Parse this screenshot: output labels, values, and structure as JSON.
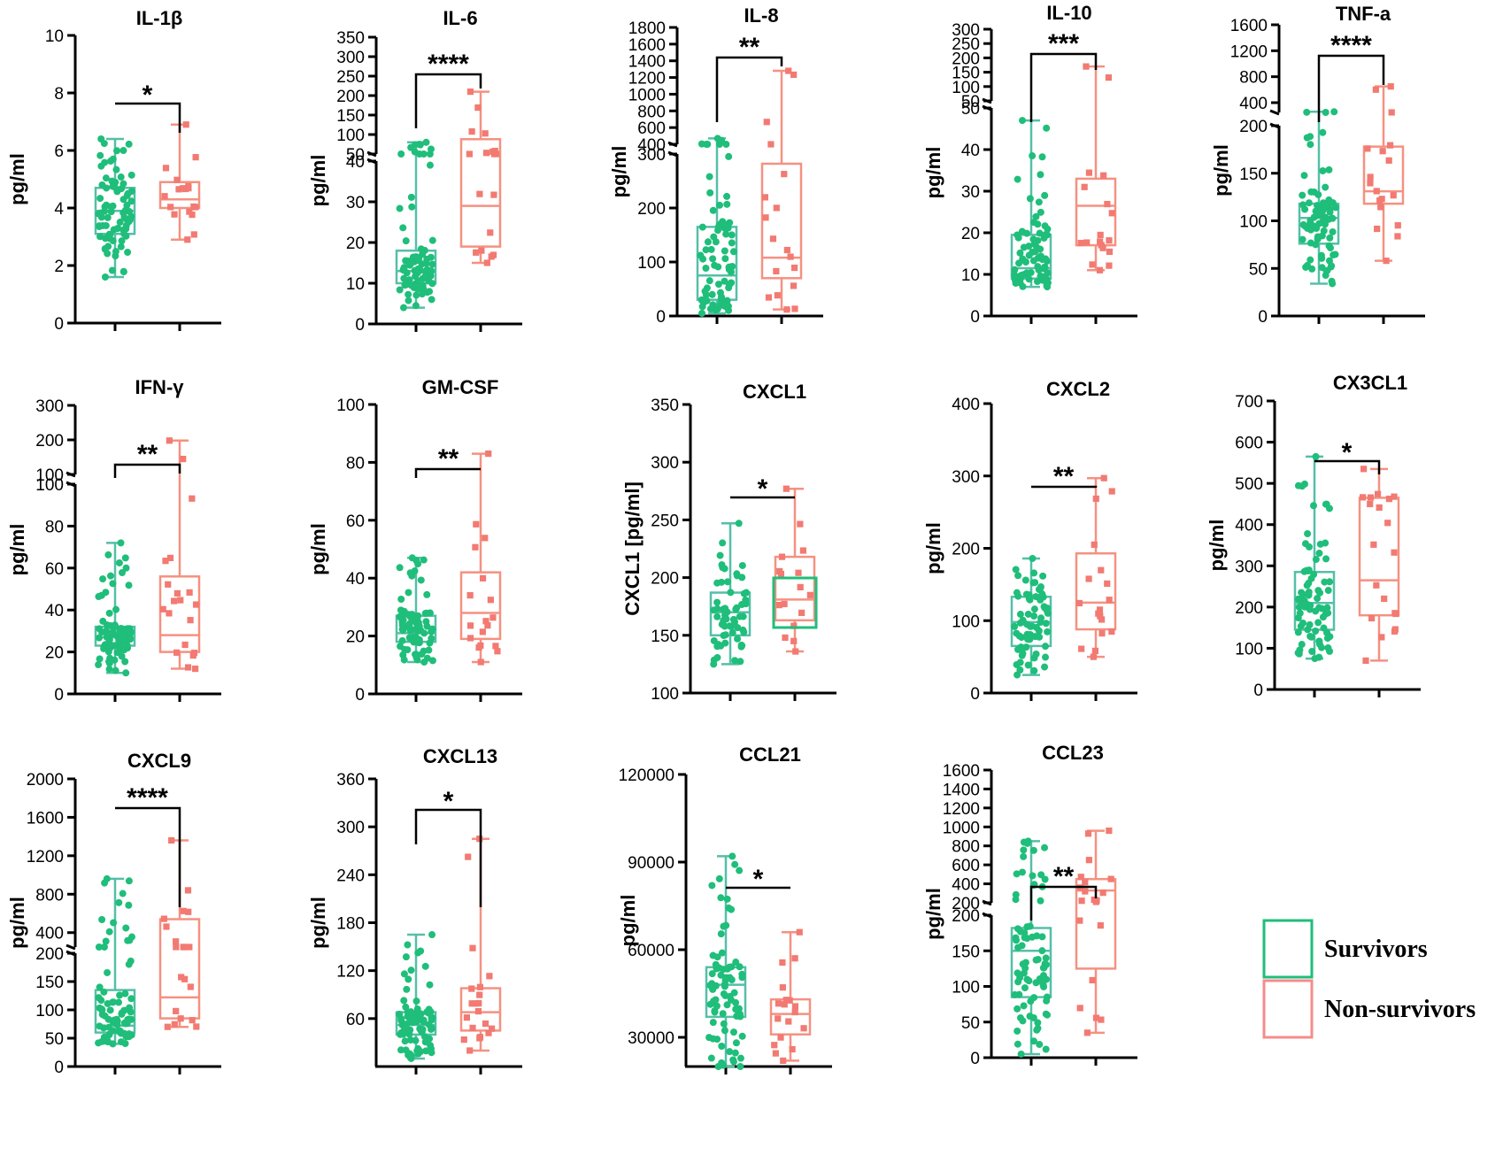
{
  "colors": {
    "survivors": "#1fbe7a",
    "nonsurvivors": "#f27a72",
    "survivors_box": "#55bfa8",
    "nonsurvivors_box": "#f59181",
    "axis": "#000000"
  },
  "legend": {
    "items": [
      {
        "label": "Survivors",
        "color": "#1fbe7a"
      },
      {
        "label": "Non-survivors",
        "color": "#f58c8c"
      }
    ]
  },
  "chart_data": [
    {
      "type": "box",
      "title": "IL-1β",
      "ylabel": "pg/ml",
      "significance": "*",
      "segments": [
        {
          "range": [
            0,
            10
          ],
          "ticks": [
            0,
            2,
            4,
            6,
            8,
            10
          ]
        }
      ],
      "groups": [
        {
          "name": "Survivors",
          "min": 1.6,
          "q1": 3.1,
          "median": 3.9,
          "q3": 4.7,
          "max": 6.4,
          "n": 80
        },
        {
          "name": "Non-survivors",
          "min": 2.9,
          "q1": 4.0,
          "median": 4.3,
          "q3": 4.9,
          "max": 6.9,
          "n": 18
        }
      ]
    },
    {
      "type": "box",
      "title": "IL-6",
      "ylabel": "pg/ml",
      "significance": "****",
      "segments": [
        {
          "range": [
            0,
            40
          ],
          "ticks": [
            0,
            10,
            20,
            30,
            40
          ]
        },
        {
          "range": [
            50,
            350
          ],
          "ticks": [
            50,
            100,
            150,
            200,
            250,
            300,
            350
          ]
        }
      ],
      "groups": [
        {
          "name": "Survivors",
          "min": 4,
          "q1": 10,
          "median": 13,
          "q3": 18,
          "max": 80,
          "n": 80
        },
        {
          "name": "Non-survivors",
          "min": 15,
          "q1": 19,
          "median": 29,
          "q3": 88,
          "max": 210,
          "n": 18
        }
      ]
    },
    {
      "type": "box",
      "title": "IL-8",
      "ylabel": "pg/ml",
      "significance": "**",
      "segments": [
        {
          "range": [
            0,
            300
          ],
          "ticks": [
            0,
            100,
            200,
            300
          ]
        },
        {
          "range": [
            400,
            1800
          ],
          "ticks": [
            400,
            600,
            800,
            1000,
            1200,
            1400,
            1600,
            1800
          ]
        }
      ],
      "groups": [
        {
          "name": "Survivors",
          "min": 5,
          "q1": 30,
          "median": 75,
          "q3": 165,
          "max": 470,
          "n": 80
        },
        {
          "name": "Non-survivors",
          "min": 12,
          "q1": 70,
          "median": 108,
          "q3": 282,
          "max": 1280,
          "n": 18
        }
      ]
    },
    {
      "type": "box",
      "title": "IL-10",
      "ylabel": "pg/ml",
      "significance": "***",
      "segments": [
        {
          "range": [
            0,
            50
          ],
          "ticks": [
            0,
            10,
            20,
            30,
            40,
            50
          ]
        },
        {
          "range": [
            50,
            300
          ],
          "ticks": [
            50,
            100,
            150,
            200,
            250,
            300
          ]
        }
      ],
      "groups": [
        {
          "name": "Survivors",
          "min": 7,
          "q1": 9,
          "median": 11.5,
          "q3": 19.5,
          "max": 47,
          "n": 80
        },
        {
          "name": "Non-survivors",
          "min": 11,
          "q1": 17,
          "median": 26.5,
          "q3": 33,
          "max": 170,
          "n": 18
        }
      ]
    },
    {
      "type": "box",
      "title": "TNF-a",
      "ylabel": "pg/ml",
      "significance": "****",
      "segments": [
        {
          "range": [
            0,
            200
          ],
          "ticks": [
            0,
            50,
            100,
            150,
            200
          ]
        },
        {
          "range": [
            250,
            1600
          ],
          "ticks": [
            400,
            800,
            1200,
            1600
          ]
        }
      ],
      "groups": [
        {
          "name": "Survivors",
          "min": 34,
          "q1": 76,
          "median": 103,
          "q3": 118,
          "max": 260,
          "n": 80
        },
        {
          "name": "Non-survivors",
          "min": 58,
          "q1": 118,
          "median": 131,
          "q3": 178,
          "max": 650,
          "n": 18
        }
      ]
    },
    {
      "type": "box",
      "title": "IFN-γ",
      "ylabel": "pg/ml",
      "significance": "**",
      "segments": [
        {
          "range": [
            0,
            100
          ],
          "ticks": [
            0,
            20,
            40,
            60,
            80,
            100
          ]
        },
        {
          "range": [
            100,
            300
          ],
          "ticks": [
            100,
            200,
            300
          ]
        }
      ],
      "groups": [
        {
          "name": "Survivors",
          "min": 10,
          "q1": 23,
          "median": 27,
          "q3": 32,
          "max": 72,
          "n": 80
        },
        {
          "name": "Non-survivors",
          "min": 12,
          "q1": 20,
          "median": 28,
          "q3": 56,
          "max": 198,
          "n": 20
        }
      ]
    },
    {
      "type": "box",
      "title": "GM-CSF",
      "ylabel": "pg/ml",
      "significance": "**",
      "segments": [
        {
          "range": [
            0,
            100
          ],
          "ticks": [
            0,
            20,
            40,
            60,
            80,
            100
          ]
        }
      ],
      "groups": [
        {
          "name": "Survivors",
          "min": 11,
          "q1": 18,
          "median": 21,
          "q3": 27,
          "max": 47,
          "n": 80
        },
        {
          "name": "Non-survivors",
          "min": 11,
          "q1": 19,
          "median": 28,
          "q3": 42,
          "max": 83,
          "n": 18
        }
      ]
    },
    {
      "type": "box",
      "title": "CXCL1",
      "ylabel": "CXCL1 [pg/ml]",
      "significance": "*",
      "segments": [
        {
          "range": [
            100,
            350
          ],
          "ticks": [
            100,
            150,
            200,
            250,
            300,
            350
          ]
        }
      ],
      "groups": [
        {
          "name": "Survivors",
          "min": 125,
          "q1": 150,
          "median": 170,
          "q3": 187,
          "max": 247,
          "n": 60
        },
        {
          "name": "Non-survivors",
          "min": 136,
          "q1": 163,
          "median": 181,
          "q3": 218,
          "max": 277,
          "n": 16
        }
      ]
    },
    {
      "type": "box",
      "title": "CXCL2",
      "ylabel": "pg/ml",
      "significance": "**",
      "segments": [
        {
          "range": [
            0,
            400
          ],
          "ticks": [
            0,
            100,
            200,
            300,
            400
          ]
        }
      ],
      "groups": [
        {
          "name": "Survivors",
          "min": 25,
          "q1": 65,
          "median": 98,
          "q3": 133,
          "max": 186,
          "n": 70
        },
        {
          "name": "Non-survivors",
          "min": 50,
          "q1": 88,
          "median": 125,
          "q3": 193,
          "max": 297,
          "n": 18
        }
      ]
    },
    {
      "type": "box",
      "title": "CX3CL1",
      "ylabel": "pg/ml",
      "significance": "*",
      "segments": [
        {
          "range": [
            0,
            700
          ],
          "ticks": [
            0,
            100,
            200,
            300,
            400,
            500,
            600,
            700
          ]
        }
      ],
      "groups": [
        {
          "name": "Survivors",
          "min": 75,
          "q1": 145,
          "median": 210,
          "q3": 285,
          "max": 565,
          "n": 80
        },
        {
          "name": "Non-survivors",
          "min": 70,
          "q1": 180,
          "median": 265,
          "q3": 465,
          "max": 535,
          "n": 20
        }
      ]
    },
    {
      "type": "box",
      "title": "CXCL9",
      "ylabel": "pg/ml",
      "significance": "****",
      "segments": [
        {
          "range": [
            0,
            200
          ],
          "ticks": [
            0,
            50,
            100,
            150,
            200
          ]
        },
        {
          "range": [
            250,
            2000
          ],
          "ticks": [
            400,
            800,
            1200,
            1600,
            2000
          ]
        }
      ],
      "groups": [
        {
          "name": "Survivors",
          "min": 40,
          "q1": 60,
          "median": 72,
          "q3": 135,
          "max": 960,
          "n": 80
        },
        {
          "name": "Non-survivors",
          "min": 70,
          "q1": 85,
          "median": 122,
          "q3": 540,
          "max": 1360,
          "n": 20
        }
      ]
    },
    {
      "type": "box",
      "title": "CXCL13",
      "ylabel": "pg/ml",
      "significance": "*",
      "segments": [
        {
          "range": [
            0,
            360
          ],
          "ticks": [
            60,
            120,
            180,
            240,
            300,
            360
          ]
        }
      ],
      "groups": [
        {
          "name": "Survivors",
          "min": 10,
          "q1": 40,
          "median": 52,
          "q3": 68,
          "max": 165,
          "n": 80
        },
        {
          "name": "Non-survivors",
          "min": 20,
          "q1": 45,
          "median": 68,
          "q3": 98,
          "max": 285,
          "n": 20
        }
      ]
    },
    {
      "type": "box",
      "title": "CCL21",
      "ylabel": "pg/ml",
      "significance": "*",
      "segments": [
        {
          "range": [
            20000,
            120000
          ],
          "ticks": [
            30000,
            60000,
            90000,
            120000
          ]
        }
      ],
      "groups": [
        {
          "name": "Survivors",
          "min": 19000,
          "q1": 37000,
          "median": 48000,
          "q3": 54000,
          "max": 92000,
          "n": 80
        },
        {
          "name": "Non-survivors",
          "min": 22000,
          "q1": 31000,
          "median": 38000,
          "q3": 43000,
          "max": 66000,
          "n": 18
        }
      ]
    },
    {
      "type": "box",
      "title": "CCL23",
      "ylabel": "pg/ml",
      "significance": "**",
      "segments": [
        {
          "range": [
            0,
            200
          ],
          "ticks": [
            0,
            50,
            100,
            150,
            200
          ]
        },
        {
          "range": [
            200,
            1600
          ],
          "ticks": [
            200,
            400,
            600,
            800,
            1000,
            1200,
            1400,
            1600
          ]
        }
      ],
      "groups": [
        {
          "name": "Survivors",
          "min": 5,
          "q1": 85,
          "median": 150,
          "q3": 182,
          "max": 850,
          "n": 80
        },
        {
          "name": "Non-survivors",
          "min": 35,
          "q1": 125,
          "median": 330,
          "q3": 450,
          "max": 960,
          "n": 20
        }
      ]
    }
  ]
}
